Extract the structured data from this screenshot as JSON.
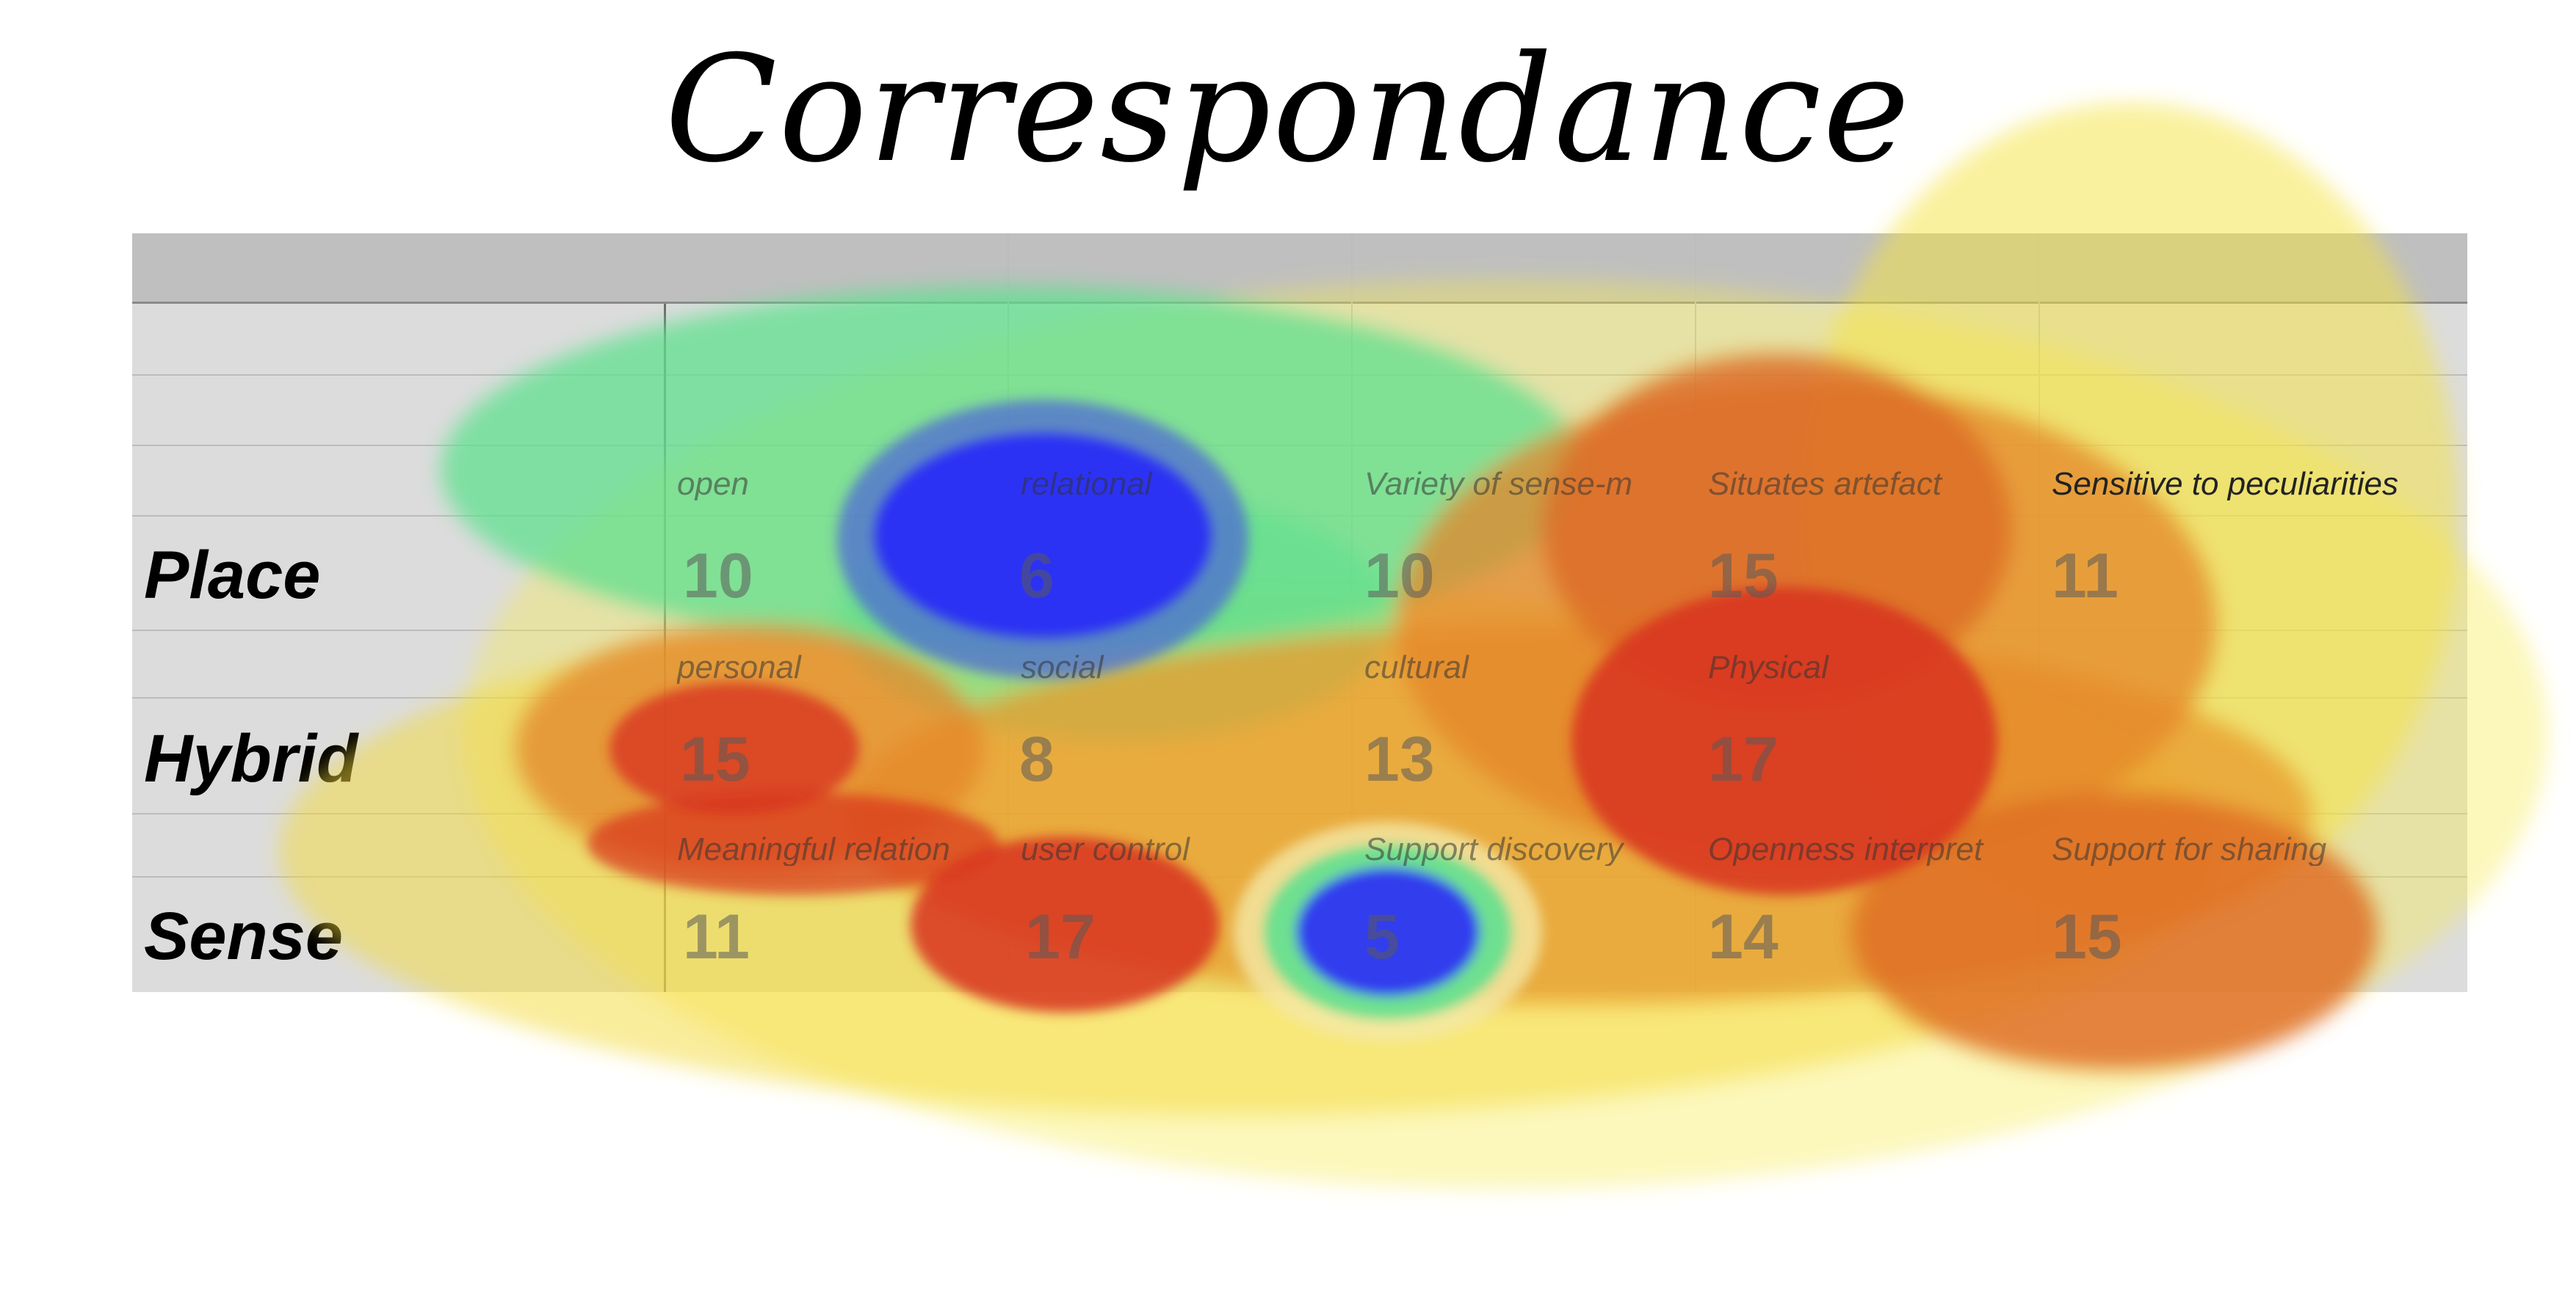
{
  "title": "Correspondance",
  "chart_data": {
    "type": "heatmap",
    "title": "Correspondance",
    "rows": [
      {
        "label": "Place",
        "cells": [
          {
            "category": "open",
            "value": 10
          },
          {
            "category": "relational",
            "value": 6
          },
          {
            "category": "Variety of sense-m",
            "value": 10
          },
          {
            "category": "Situates artefact",
            "value": 15
          },
          {
            "category": "Sensitive to peculiarities",
            "value": 11
          }
        ]
      },
      {
        "label": "Hybrid",
        "cells": [
          {
            "category": "personal",
            "value": 15
          },
          {
            "category": "social",
            "value": 8
          },
          {
            "category": "cultural",
            "value": 13
          },
          {
            "category": "Physical",
            "value": 17
          },
          {
            "category": "",
            "value": null
          }
        ]
      },
      {
        "label": "Sense",
        "cells": [
          {
            "category": "Meaningful relation",
            "value": 11
          },
          {
            "category": "user control",
            "value": 17
          },
          {
            "category": "Support discovery",
            "value": 5
          },
          {
            "category": "Openness interpret",
            "value": 14
          },
          {
            "category": "Support for sharing",
            "value": 15
          }
        ]
      }
    ],
    "color_scale": {
      "low": "#2b2ef5",
      "mid_low": "#5fe08f",
      "mid": "#f4dc3a",
      "mid_high": "#e89a2c",
      "high": "#d8341f"
    }
  }
}
